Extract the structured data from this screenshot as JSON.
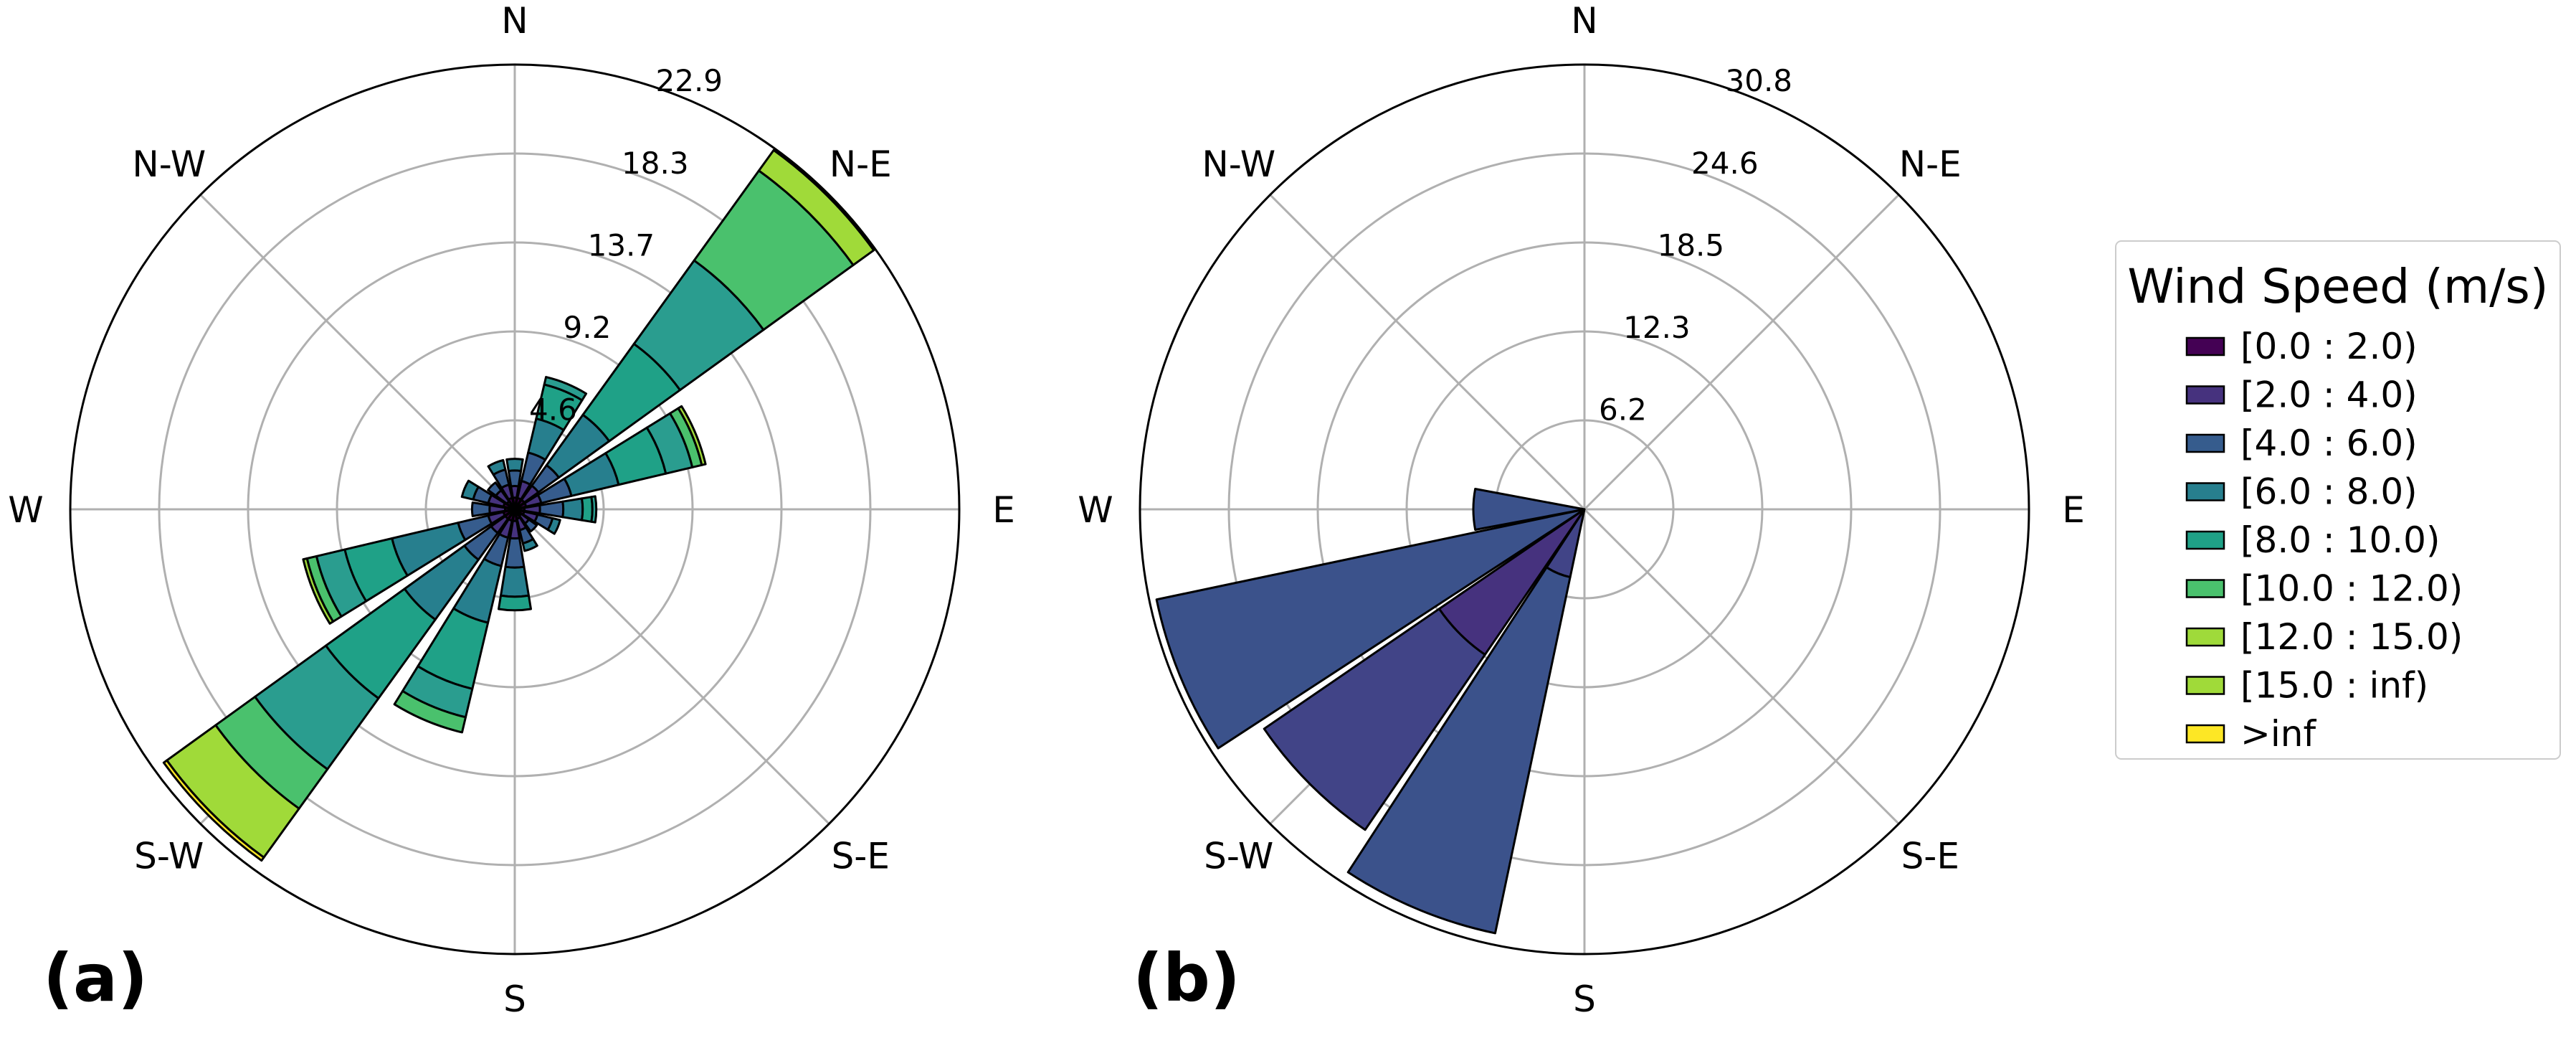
{
  "chart_data": [
    {
      "type": "windrose",
      "panel_label": "(a)",
      "direction_labels": [
        "N",
        "N-E",
        "E",
        "S-E",
        "S",
        "S-W",
        "W",
        "N-W"
      ],
      "radial_ticks": [
        "4.6",
        "9.2",
        "13.7",
        "18.3",
        "22.9"
      ],
      "rmax": 22.9,
      "grid": true,
      "sectors": [
        {
          "direction_deg": 0,
          "cumulative": [
            0.6,
            1.2,
            2.0,
            2.6
          ]
        },
        {
          "direction_deg": 22.5,
          "cumulative": [
            0.6,
            1.5,
            3.0,
            4.8,
            6.6,
            7.0
          ]
        },
        {
          "direction_deg": 45,
          "cumulative": [
            0.6,
            1.5,
            2.8,
            6.0,
            10.5,
            15.8,
            21.5,
            22.8
          ]
        },
        {
          "direction_deg": 67.5,
          "cumulative": [
            0.6,
            1.4,
            3.0,
            5.5,
            8.0,
            9.4,
            9.9,
            10.1
          ]
        },
        {
          "direction_deg": 90,
          "cumulative": [
            0.5,
            1.3,
            2.5,
            3.5,
            4.0,
            4.2
          ]
        },
        {
          "direction_deg": 112.5,
          "cumulative": [
            0.5,
            1.2,
            2.0,
            2.4
          ]
        },
        {
          "direction_deg": 135,
          "cumulative": [
            0.4,
            0.9,
            1.4
          ]
        },
        {
          "direction_deg": 157.5,
          "cumulative": [
            0.5,
            1.1,
            1.8,
            2.2
          ]
        },
        {
          "direction_deg": 180,
          "cumulative": [
            0.6,
            1.5,
            3.0,
            4.5,
            5.2
          ]
        },
        {
          "direction_deg": 202.5,
          "cumulative": [
            0.6,
            1.5,
            3.0,
            6.0,
            9.5,
            11.0,
            11.8
          ]
        },
        {
          "direction_deg": 225,
          "cumulative": [
            0.6,
            1.5,
            3.2,
            7.0,
            12.0,
            16.5,
            19.0,
            22.1,
            22.3
          ]
        },
        {
          "direction_deg": 247.5,
          "cumulative": [
            0.6,
            1.4,
            3.0,
            6.5,
            9.0,
            10.5,
            11.0,
            11.2
          ]
        },
        {
          "direction_deg": 270,
          "cumulative": [
            0.5,
            1.3,
            2.2
          ]
        },
        {
          "direction_deg": 292.5,
          "cumulative": [
            0.6,
            1.4,
            2.2,
            2.8
          ]
        },
        {
          "direction_deg": 315,
          "cumulative": [
            0.5,
            1.2,
            1.7
          ]
        },
        {
          "direction_deg": 337.5,
          "cumulative": [
            0.6,
            1.3,
            2.1,
            2.6
          ]
        }
      ]
    },
    {
      "type": "windrose",
      "panel_label": "(b)",
      "direction_labels": [
        "N",
        "N-E",
        "E",
        "S-E",
        "S",
        "S-W",
        "W",
        "N-W"
      ],
      "radial_ticks": [
        "6.2",
        "12.3",
        "18.5",
        "24.6",
        "30.8"
      ],
      "rmax": 30.8,
      "grid": true,
      "sectors": [
        {
          "direction_deg": 180,
          "cumulative": [
            0,
            0,
            0,
            0
          ]
        },
        {
          "direction_deg": 202.5,
          "cumulative": [
            0,
            0,
            4.8,
            30.0
          ]
        },
        {
          "direction_deg": 225,
          "cumulative": [
            0,
            12.2,
            26.9
          ]
        },
        {
          "direction_deg": 247.5,
          "cumulative": [
            0,
            0,
            0,
            30.3
          ]
        },
        {
          "direction_deg": 270,
          "cumulative": [
            0,
            0,
            0,
            7.7
          ]
        }
      ]
    }
  ],
  "legend": {
    "title": "Wind Speed (m/s)",
    "location": "right",
    "items": [
      {
        "label": "[0.0 : 2.0)",
        "color": "#440154"
      },
      {
        "label": "[2.0 : 4.0)",
        "color": "#46327e"
      },
      {
        "label": "[4.0 : 6.0)",
        "color": "#365c8d"
      },
      {
        "label": "[6.0 : 8.0)",
        "color": "#277f8e"
      },
      {
        "label": "[8.0 : 10.0)",
        "color": "#1fa187"
      },
      {
        "label": "[10.0 : 12.0)",
        "color": "#4ac16d"
      },
      {
        "label": "[12.0 : 15.0)",
        "color": "#9fda3a"
      },
      {
        "label": "[15.0 : inf)",
        "color": "#a0da39"
      },
      {
        "label": ">inf",
        "color": "#fde725"
      }
    ]
  },
  "colors": {
    "bins_a": [
      "#440154",
      "#46327e",
      "#365c8d",
      "#277f8e",
      "#1fa187",
      "#2a9d8f",
      "#4ac16d",
      "#a0da39",
      "#fde725"
    ],
    "bins_b": [
      "#440154",
      "#46327e",
      "#414487",
      "#3b528b",
      "#2c728e"
    ],
    "grid": "#b0b0b0",
    "outline": "#000000"
  }
}
